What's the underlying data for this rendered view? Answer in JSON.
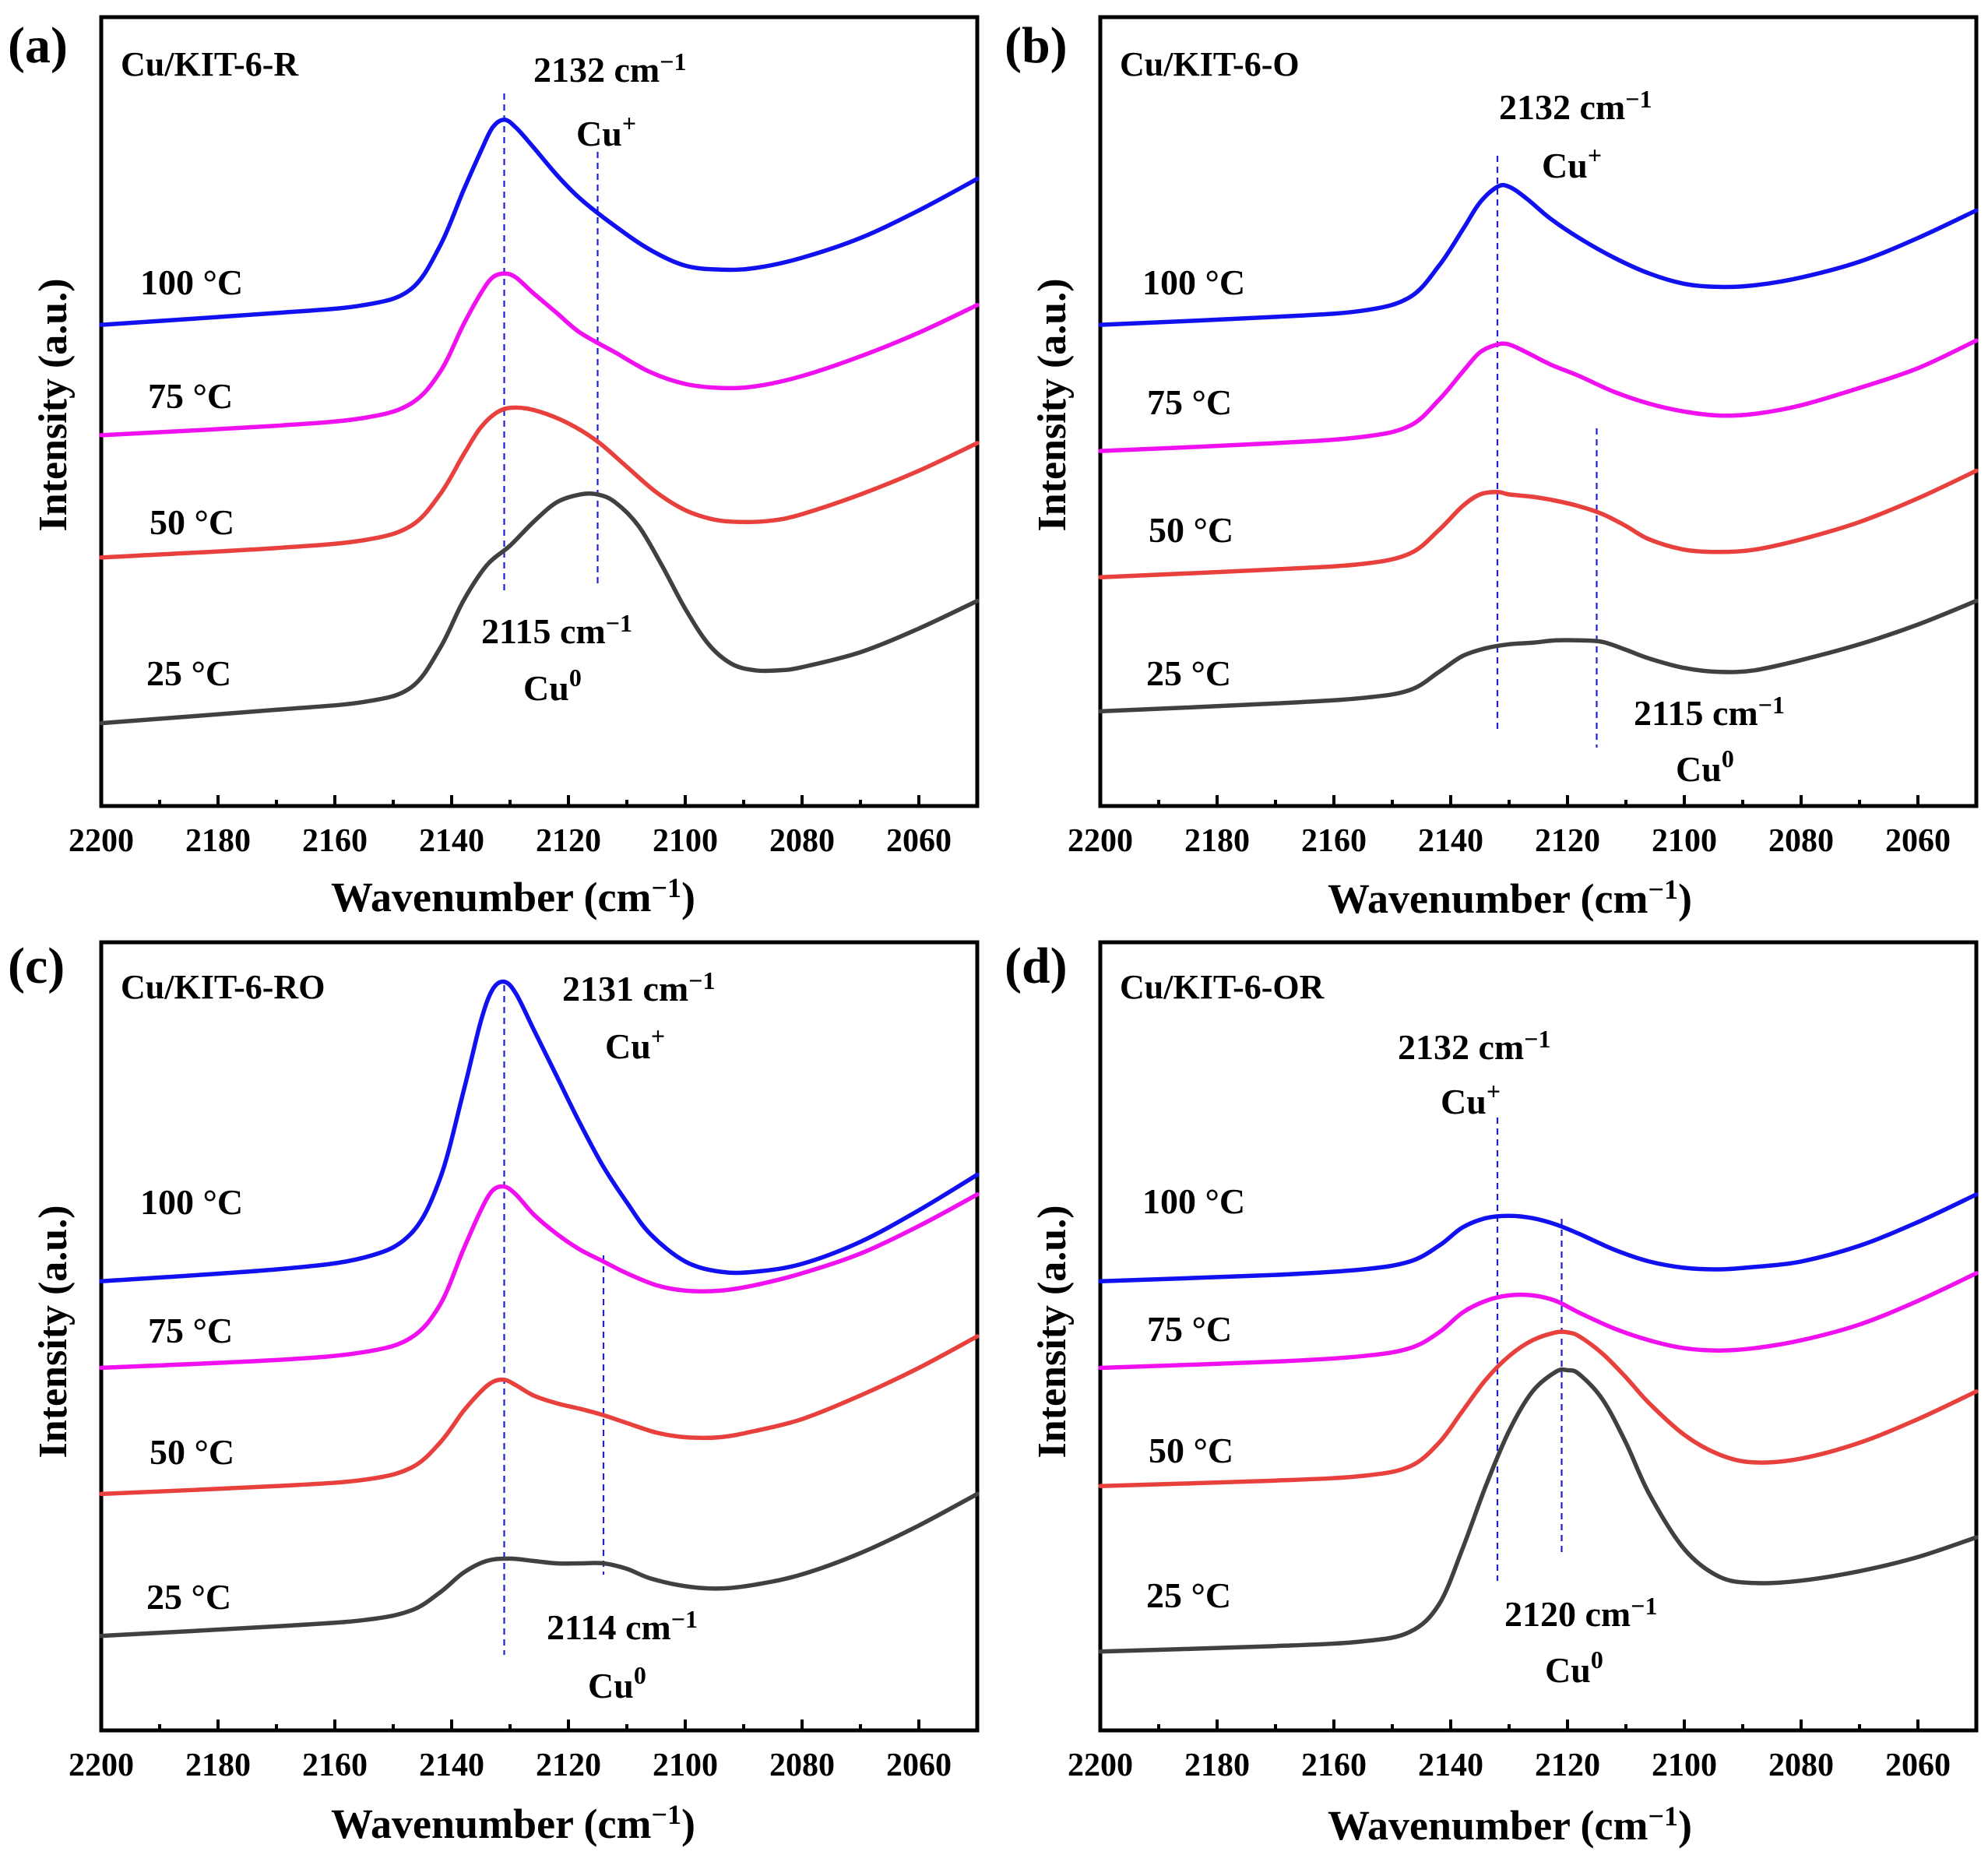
{
  "colors": {
    "100": "#1010f0",
    "75": "#f010f0",
    "50": "#e8403c",
    "25": "#404040",
    "dashed": "#1f1fd0"
  },
  "chart_data": [
    {
      "type": "line",
      "panel": "(a)",
      "title": "Cu/KIT-6-R",
      "xlabel": "Wavenumber",
      "xlabel_unit_base": "(cm",
      "xlabel_unit_sup": "−1",
      "xlabel_close": ")",
      "ylabel": "Intensity (a.u.)",
      "xlim": [
        2200,
        2050
      ],
      "xticks": [
        2200,
        2180,
        2160,
        2140,
        2120,
        2100,
        2080,
        2060
      ],
      "ylim": [
        0,
        10
      ],
      "series": [
        {
          "name": "100 °C",
          "color_key": "100",
          "x": [
            2200,
            2170,
            2155,
            2147,
            2142,
            2138,
            2135,
            2133,
            2131,
            2129,
            2126,
            2122,
            2118,
            2112,
            2106,
            2100,
            2094,
            2088,
            2080,
            2070,
            2060,
            2050
          ],
          "y": [
            6.1,
            6.25,
            6.35,
            6.55,
            7.1,
            7.8,
            8.3,
            8.6,
            8.7,
            8.6,
            8.35,
            8.0,
            7.7,
            7.35,
            7.05,
            6.85,
            6.8,
            6.82,
            6.95,
            7.2,
            7.55,
            7.95
          ]
        },
        {
          "name": "75 °C",
          "color_key": "75",
          "x": [
            2200,
            2170,
            2155,
            2147,
            2142,
            2138,
            2135,
            2133,
            2131,
            2129,
            2126,
            2122,
            2118,
            2112,
            2106,
            2100,
            2094,
            2088,
            2080,
            2070,
            2060,
            2050
          ],
          "y": [
            4.7,
            4.82,
            4.92,
            5.1,
            5.5,
            6.1,
            6.5,
            6.7,
            6.75,
            6.7,
            6.5,
            6.25,
            6.0,
            5.75,
            5.5,
            5.35,
            5.3,
            5.32,
            5.45,
            5.7,
            6.0,
            6.35
          ]
        },
        {
          "name": "50 °C",
          "color_key": "50",
          "x": [
            2200,
            2170,
            2155,
            2147,
            2142,
            2138,
            2135,
            2132,
            2129,
            2125,
            2120,
            2115,
            2110,
            2105,
            2100,
            2095,
            2090,
            2085,
            2080,
            2070,
            2060,
            2050
          ],
          "y": [
            3.15,
            3.27,
            3.37,
            3.55,
            3.95,
            4.45,
            4.8,
            5.0,
            5.05,
            5.0,
            4.85,
            4.62,
            4.3,
            3.98,
            3.75,
            3.63,
            3.6,
            3.62,
            3.7,
            3.95,
            4.25,
            4.6
          ]
        },
        {
          "name": "25 °C",
          "color_key": "25",
          "x": [
            2200,
            2170,
            2155,
            2147,
            2142,
            2138,
            2134,
            2130,
            2126,
            2122,
            2118,
            2115,
            2112,
            2108,
            2104,
            2100,
            2096,
            2092,
            2088,
            2084,
            2080,
            2070,
            2060,
            2050
          ],
          "y": [
            1.05,
            1.22,
            1.32,
            1.5,
            2.0,
            2.6,
            3.05,
            3.3,
            3.6,
            3.85,
            3.95,
            3.95,
            3.85,
            3.55,
            3.05,
            2.5,
            2.05,
            1.8,
            1.72,
            1.72,
            1.76,
            1.95,
            2.25,
            2.6
          ]
        }
      ],
      "annotations": [
        {
          "value": "2132 cm",
          "sup": "−1",
          "ion": "Cu",
          "charge": "+"
        },
        {
          "value": "2115 cm",
          "sup": "−1",
          "ion": "Cu",
          "charge": "0"
        }
      ],
      "guide_lines_x": [
        2131,
        2115
      ]
    },
    {
      "type": "line",
      "panel": "(b)",
      "title": "Cu/KIT-6-O",
      "xlabel": "Wavenumber",
      "xlabel_unit_base": "(cm",
      "xlabel_unit_sup": "−1",
      "xlabel_close": ")",
      "ylabel": "Intensity (a.u.)",
      "xlim": [
        2200,
        2050
      ],
      "xticks": [
        2200,
        2180,
        2160,
        2140,
        2120,
        2100,
        2080,
        2060
      ],
      "ylim": [
        0,
        10
      ],
      "series": [
        {
          "name": "100 °C",
          "color_key": "100",
          "x": [
            2200,
            2170,
            2155,
            2147,
            2142,
            2138,
            2135,
            2132,
            2130,
            2127,
            2123,
            2118,
            2112,
            2106,
            2100,
            2094,
            2088,
            2080,
            2070,
            2060,
            2050
          ],
          "y": [
            6.1,
            6.2,
            6.28,
            6.45,
            6.85,
            7.3,
            7.65,
            7.85,
            7.85,
            7.7,
            7.45,
            7.2,
            6.95,
            6.75,
            6.62,
            6.58,
            6.6,
            6.7,
            6.9,
            7.2,
            7.55
          ]
        },
        {
          "name": "75 °C",
          "color_key": "75",
          "x": [
            2200,
            2170,
            2155,
            2147,
            2142,
            2138,
            2135,
            2132,
            2130,
            2127,
            2123,
            2118,
            2112,
            2106,
            2100,
            2094,
            2088,
            2080,
            2070,
            2060,
            2050
          ],
          "y": [
            4.5,
            4.6,
            4.68,
            4.82,
            5.15,
            5.5,
            5.75,
            5.85,
            5.85,
            5.75,
            5.6,
            5.45,
            5.25,
            5.1,
            5.0,
            4.95,
            4.97,
            5.08,
            5.3,
            5.55,
            5.9
          ]
        },
        {
          "name": "50 °C",
          "color_key": "50",
          "x": [
            2200,
            2170,
            2155,
            2147,
            2142,
            2138,
            2135,
            2132,
            2130,
            2126,
            2122,
            2118,
            2114,
            2110,
            2106,
            2100,
            2094,
            2088,
            2080,
            2070,
            2060,
            2050
          ],
          "y": [
            2.9,
            3.0,
            3.07,
            3.2,
            3.5,
            3.8,
            3.95,
            3.98,
            3.95,
            3.92,
            3.87,
            3.8,
            3.7,
            3.55,
            3.38,
            3.25,
            3.22,
            3.25,
            3.38,
            3.6,
            3.9,
            4.25
          ]
        },
        {
          "name": "25 °C",
          "color_key": "25",
          "x": [
            2200,
            2170,
            2155,
            2147,
            2142,
            2138,
            2134,
            2130,
            2126,
            2122,
            2118,
            2114,
            2110,
            2106,
            2100,
            2094,
            2088,
            2080,
            2070,
            2060,
            2050
          ],
          "y": [
            1.2,
            1.3,
            1.37,
            1.47,
            1.7,
            1.9,
            2.0,
            2.05,
            2.07,
            2.1,
            2.1,
            2.08,
            1.98,
            1.87,
            1.75,
            1.7,
            1.72,
            1.85,
            2.05,
            2.3,
            2.6
          ]
        }
      ],
      "annotations": [
        {
          "value": "2132 cm",
          "sup": "−1",
          "ion": "Cu",
          "charge": "+"
        },
        {
          "value": "2115 cm",
          "sup": "−1",
          "ion": "Cu",
          "charge": "0"
        }
      ],
      "guide_lines_x": [
        2132,
        2115
      ]
    },
    {
      "type": "line",
      "panel": "(c)",
      "title": "Cu/KIT-6-RO",
      "xlabel": "Wavenumber",
      "xlabel_unit_base": "(cm",
      "xlabel_unit_sup": "−1",
      "xlabel_close": ")",
      "ylabel": "Intensity (a.u.)",
      "xlim": [
        2200,
        2050
      ],
      "xticks": [
        2200,
        2180,
        2160,
        2140,
        2120,
        2100,
        2080,
        2060
      ],
      "ylim": [
        0,
        10
      ],
      "series": [
        {
          "name": "100 °C",
          "color_key": "100",
          "x": [
            2200,
            2170,
            2155,
            2147,
            2142,
            2138,
            2135,
            2133,
            2131,
            2129,
            2126,
            2122,
            2118,
            2114,
            2110,
            2106,
            2100,
            2094,
            2088,
            2080,
            2070,
            2060,
            2050
          ],
          "y": [
            5.7,
            5.85,
            6.0,
            6.3,
            7.0,
            8.1,
            9.0,
            9.4,
            9.5,
            9.35,
            8.9,
            8.3,
            7.7,
            7.15,
            6.7,
            6.3,
            5.95,
            5.82,
            5.82,
            5.92,
            6.2,
            6.6,
            7.05
          ]
        },
        {
          "name": "75 °C",
          "color_key": "75",
          "x": [
            2200,
            2170,
            2155,
            2147,
            2142,
            2138,
            2135,
            2133,
            2131,
            2129,
            2126,
            2122,
            2118,
            2114,
            2110,
            2105,
            2100,
            2094,
            2088,
            2080,
            2070,
            2060,
            2050
          ],
          "y": [
            4.6,
            4.7,
            4.8,
            4.98,
            5.4,
            6.1,
            6.6,
            6.85,
            6.9,
            6.8,
            6.55,
            6.3,
            6.1,
            5.95,
            5.8,
            5.65,
            5.58,
            5.58,
            5.65,
            5.8,
            6.05,
            6.4,
            6.8
          ]
        },
        {
          "name": "50 °C",
          "color_key": "50",
          "x": [
            2200,
            2170,
            2155,
            2147,
            2142,
            2138,
            2135,
            2133,
            2131,
            2129,
            2126,
            2122,
            2118,
            2114,
            2110,
            2105,
            2100,
            2094,
            2088,
            2080,
            2070,
            2060,
            2050
          ],
          "y": [
            3.0,
            3.1,
            3.18,
            3.33,
            3.65,
            4.05,
            4.3,
            4.42,
            4.45,
            4.38,
            4.25,
            4.15,
            4.08,
            4.0,
            3.9,
            3.78,
            3.72,
            3.72,
            3.8,
            3.95,
            4.25,
            4.6,
            5.0
          ]
        },
        {
          "name": "25 °C",
          "color_key": "25",
          "x": [
            2200,
            2170,
            2155,
            2147,
            2142,
            2138,
            2134,
            2130,
            2126,
            2122,
            2118,
            2114,
            2110,
            2106,
            2100,
            2094,
            2088,
            2080,
            2070,
            2060,
            2050
          ],
          "y": [
            1.2,
            1.32,
            1.4,
            1.52,
            1.75,
            2.0,
            2.15,
            2.18,
            2.15,
            2.12,
            2.12,
            2.12,
            2.05,
            1.93,
            1.83,
            1.8,
            1.85,
            1.98,
            2.25,
            2.6,
            3.0
          ]
        }
      ],
      "annotations": [
        {
          "value": "2131 cm",
          "sup": "−1",
          "ion": "Cu",
          "charge": "+"
        },
        {
          "value": "2114 cm",
          "sup": "−1",
          "ion": "Cu",
          "charge": "0"
        }
      ],
      "guide_lines_x": [
        2131,
        2114
      ]
    },
    {
      "type": "line",
      "panel": "(d)",
      "title": "Cu/KIT-6-OR",
      "xlabel": "Wavenumber",
      "xlabel_unit_base": "(cm",
      "xlabel_unit_sup": "−1",
      "xlabel_close": ")",
      "ylabel": "Intensity (a.u.)",
      "xlim": [
        2200,
        2050
      ],
      "xticks": [
        2200,
        2180,
        2160,
        2140,
        2120,
        2100,
        2080,
        2060
      ],
      "ylim": [
        0,
        10
      ],
      "series": [
        {
          "name": "100 °C",
          "color_key": "100",
          "x": [
            2200,
            2170,
            2155,
            2147,
            2142,
            2138,
            2134,
            2130,
            2126,
            2122,
            2118,
            2112,
            2106,
            2100,
            2094,
            2088,
            2080,
            2070,
            2060,
            2050
          ],
          "y": [
            5.7,
            5.78,
            5.85,
            5.95,
            6.15,
            6.38,
            6.5,
            6.53,
            6.5,
            6.42,
            6.3,
            6.1,
            5.95,
            5.87,
            5.85,
            5.88,
            5.95,
            6.15,
            6.45,
            6.8
          ]
        },
        {
          "name": "75 °C",
          "color_key": "75",
          "x": [
            2200,
            2170,
            2155,
            2147,
            2142,
            2138,
            2134,
            2130,
            2126,
            2122,
            2118,
            2112,
            2106,
            2100,
            2094,
            2088,
            2080,
            2070,
            2060,
            2050
          ],
          "y": [
            4.6,
            4.68,
            4.75,
            4.85,
            5.05,
            5.3,
            5.45,
            5.52,
            5.52,
            5.45,
            5.3,
            5.1,
            4.95,
            4.85,
            4.82,
            4.85,
            4.95,
            5.15,
            5.45,
            5.8
          ]
        },
        {
          "name": "50 °C",
          "color_key": "50",
          "x": [
            2200,
            2170,
            2155,
            2147,
            2142,
            2138,
            2134,
            2130,
            2126,
            2122,
            2120,
            2118,
            2114,
            2110,
            2106,
            2100,
            2094,
            2088,
            2080,
            2070,
            2060,
            2050
          ],
          "y": [
            3.1,
            3.17,
            3.23,
            3.35,
            3.65,
            4.05,
            4.45,
            4.75,
            4.95,
            5.05,
            5.05,
            5.0,
            4.78,
            4.48,
            4.15,
            3.75,
            3.5,
            3.4,
            3.45,
            3.65,
            3.95,
            4.3
          ]
        },
        {
          "name": "25 °C",
          "color_key": "25",
          "x": [
            2200,
            2170,
            2155,
            2147,
            2142,
            2138,
            2134,
            2130,
            2126,
            2122,
            2120,
            2118,
            2114,
            2110,
            2106,
            2100,
            2094,
            2088,
            2080,
            2070,
            2060,
            2050
          ],
          "y": [
            1.0,
            1.07,
            1.13,
            1.25,
            1.6,
            2.3,
            3.1,
            3.8,
            4.3,
            4.55,
            4.57,
            4.52,
            4.2,
            3.65,
            3.0,
            2.3,
            1.95,
            1.87,
            1.9,
            2.02,
            2.2,
            2.45
          ]
        }
      ],
      "annotations": [
        {
          "value": "2132 cm",
          "sup": "−1",
          "ion": "Cu",
          "charge": "+"
        },
        {
          "value": "2120 cm",
          "sup": "−1",
          "ion": "Cu",
          "charge": "0"
        }
      ],
      "guide_lines_x": [
        2132,
        2121
      ]
    }
  ]
}
